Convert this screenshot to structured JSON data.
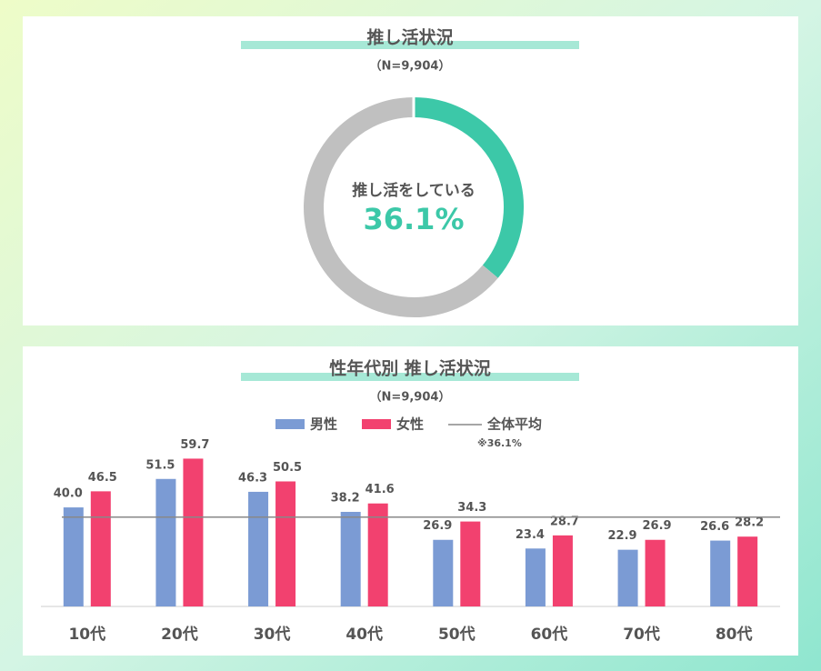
{
  "chart_data": [
    {
      "type": "pie",
      "donut": true,
      "title": "推し活状況",
      "subtitle": "（N=9,904）",
      "categories": [
        "推し活をしている",
        null
      ],
      "values": [
        36.1,
        63.9
      ],
      "value_labels": [
        "36.1%",
        null
      ],
      "colors": [
        "#3cc8a8",
        "#c0c0c0"
      ]
    },
    {
      "type": "bar",
      "title": "性年代別 推し活状況",
      "subtitle": "（N=9,904）",
      "categories": [
        "10代",
        "20代",
        "30代",
        "40代",
        "50代",
        "60代",
        "70代",
        "80代"
      ],
      "series": [
        {
          "name": "男性",
          "color": "#7b9bd4",
          "values": [
            40.0,
            51.5,
            46.3,
            38.2,
            26.9,
            23.4,
            22.9,
            26.6
          ],
          "value_labels": [
            "40.0",
            "51.5",
            "46.3",
            "38.2",
            "26.9",
            "23.4",
            "22.9",
            "26.6"
          ]
        },
        {
          "name": "女性",
          "color": "#f2416f",
          "values": [
            46.5,
            59.7,
            50.5,
            41.6,
            34.3,
            28.7,
            26.9,
            28.2
          ],
          "value_labels": [
            "46.5",
            "59.7",
            "50.5",
            "41.6",
            "34.3",
            "28.7",
            "26.9",
            "28.2"
          ]
        }
      ],
      "reference": {
        "name": "全体平均",
        "value": 36.1,
        "label": "※36.1%",
        "color": "#888888"
      },
      "ylim": [
        0,
        65
      ],
      "legend": "top"
    }
  ]
}
